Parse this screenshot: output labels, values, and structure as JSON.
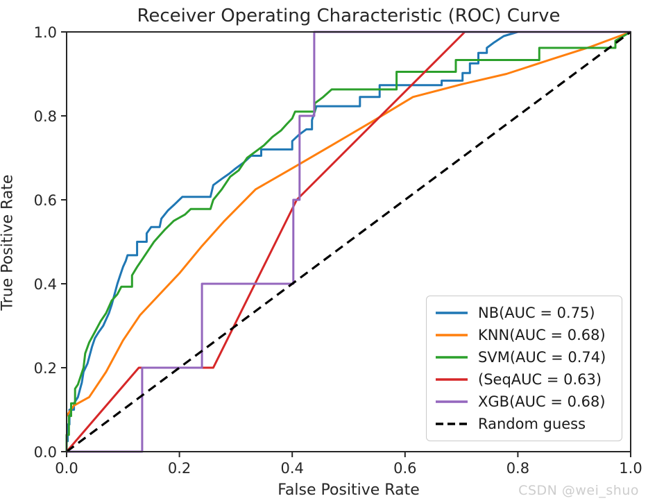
{
  "figure": {
    "title": "Receiver Operating Characteristic (ROC) Curve",
    "xlabel": "False Positive Rate",
    "ylabel": "True Positive Rate",
    "watermark": "CSDN @wei_shuo"
  },
  "chart_data": {
    "type": "line",
    "title": "Receiver Operating Characteristic (ROC) Curve",
    "xlabel": "False Positive Rate",
    "ylabel": "True Positive Rate",
    "xlim": [
      0.0,
      1.0
    ],
    "ylim": [
      0.0,
      1.0
    ],
    "xticks": [
      "0.0",
      "0.2",
      "0.4",
      "0.6",
      "0.8",
      "1.0"
    ],
    "xtick_values": [
      0.0,
      0.2,
      0.4,
      0.6,
      0.8,
      1.0
    ],
    "yticks": [
      "0.0",
      "0.2",
      "0.4",
      "0.6",
      "0.8",
      "1.0"
    ],
    "ytick_values": [
      0.0,
      0.2,
      0.4,
      0.6,
      0.8,
      1.0
    ],
    "grid": false,
    "legend_position": "lower right",
    "axis_color": "#262626",
    "series": [
      {
        "name": "NB(AUC = 0.75)",
        "auc": 0.75,
        "color": "#1f77b4",
        "style": "solid",
        "points": [
          [
            0,
            0
          ],
          [
            0,
            0.025
          ],
          [
            0.002,
            0.025
          ],
          [
            0.002,
            0.065
          ],
          [
            0.005,
            0.065
          ],
          [
            0.005,
            0.1
          ],
          [
            0.013,
            0.1
          ],
          [
            0.013,
            0.115
          ],
          [
            0.02,
            0.13
          ],
          [
            0.027,
            0.165
          ],
          [
            0.03,
            0.19
          ],
          [
            0.037,
            0.21
          ],
          [
            0.045,
            0.25
          ],
          [
            0.05,
            0.27
          ],
          [
            0.057,
            0.285
          ],
          [
            0.065,
            0.3
          ],
          [
            0.07,
            0.315
          ],
          [
            0.075,
            0.33
          ],
          [
            0.08,
            0.35
          ],
          [
            0.085,
            0.375
          ],
          [
            0.09,
            0.4
          ],
          [
            0.095,
            0.42
          ],
          [
            0.1,
            0.44
          ],
          [
            0.105,
            0.455
          ],
          [
            0.108,
            0.468
          ],
          [
            0.125,
            0.468
          ],
          [
            0.125,
            0.5
          ],
          [
            0.142,
            0.5
          ],
          [
            0.142,
            0.52
          ],
          [
            0.15,
            0.535
          ],
          [
            0.165,
            0.535
          ],
          [
            0.168,
            0.555
          ],
          [
            0.18,
            0.575
          ],
          [
            0.192,
            0.59
          ],
          [
            0.205,
            0.607
          ],
          [
            0.255,
            0.607
          ],
          [
            0.26,
            0.635
          ],
          [
            0.275,
            0.65
          ],
          [
            0.288,
            0.662
          ],
          [
            0.3,
            0.675
          ],
          [
            0.315,
            0.69
          ],
          [
            0.327,
            0.705
          ],
          [
            0.345,
            0.705
          ],
          [
            0.345,
            0.72
          ],
          [
            0.4,
            0.72
          ],
          [
            0.4,
            0.74
          ],
          [
            0.412,
            0.755
          ],
          [
            0.425,
            0.768
          ],
          [
            0.435,
            0.768
          ],
          [
            0.435,
            0.79
          ],
          [
            0.44,
            0.81
          ],
          [
            0.443,
            0.823
          ],
          [
            0.52,
            0.823
          ],
          [
            0.52,
            0.845
          ],
          [
            0.555,
            0.845
          ],
          [
            0.555,
            0.873
          ],
          [
            0.665,
            0.873
          ],
          [
            0.665,
            0.884
          ],
          [
            0.702,
            0.884
          ],
          [
            0.702,
            0.902
          ],
          [
            0.715,
            0.902
          ],
          [
            0.715,
            0.925
          ],
          [
            0.73,
            0.925
          ],
          [
            0.73,
            0.95
          ],
          [
            0.745,
            0.95
          ],
          [
            0.745,
            0.962
          ],
          [
            0.758,
            0.975
          ],
          [
            0.775,
            0.99
          ],
          [
            0.8,
            1.0
          ],
          [
            1,
            1
          ]
        ]
      },
      {
        "name": "KNN(AUC = 0.68)",
        "auc": 0.68,
        "color": "#ff7f0e",
        "style": "solid",
        "points": [
          [
            0,
            0.085
          ],
          [
            0.013,
            0.11
          ],
          [
            0.04,
            0.13
          ],
          [
            0.07,
            0.19
          ],
          [
            0.1,
            0.265
          ],
          [
            0.13,
            0.325
          ],
          [
            0.165,
            0.375
          ],
          [
            0.2,
            0.425
          ],
          [
            0.24,
            0.49
          ],
          [
            0.28,
            0.55
          ],
          [
            0.335,
            0.625
          ],
          [
            0.4,
            0.675
          ],
          [
            0.47,
            0.73
          ],
          [
            0.54,
            0.785
          ],
          [
            0.614,
            0.845
          ],
          [
            0.7,
            0.875
          ],
          [
            0.78,
            0.9
          ],
          [
            0.86,
            0.935
          ],
          [
            0.93,
            0.965
          ],
          [
            1,
            1
          ]
        ]
      },
      {
        "name": "SVM(AUC = 0.74)",
        "auc": 0.74,
        "color": "#2ca02c",
        "style": "solid",
        "points": [
          [
            0,
            0
          ],
          [
            0,
            0.04
          ],
          [
            0.004,
            0.04
          ],
          [
            0.004,
            0.085
          ],
          [
            0.008,
            0.085
          ],
          [
            0.008,
            0.115
          ],
          [
            0.015,
            0.115
          ],
          [
            0.015,
            0.15
          ],
          [
            0.02,
            0.16
          ],
          [
            0.03,
            0.2
          ],
          [
            0.033,
            0.234
          ],
          [
            0.04,
            0.26
          ],
          [
            0.05,
            0.285
          ],
          [
            0.06,
            0.31
          ],
          [
            0.07,
            0.33
          ],
          [
            0.08,
            0.36
          ],
          [
            0.09,
            0.375
          ],
          [
            0.097,
            0.393
          ],
          [
            0.116,
            0.393
          ],
          [
            0.116,
            0.42
          ],
          [
            0.125,
            0.44
          ],
          [
            0.135,
            0.46
          ],
          [
            0.145,
            0.48
          ],
          [
            0.155,
            0.5
          ],
          [
            0.165,
            0.515
          ],
          [
            0.175,
            0.53
          ],
          [
            0.19,
            0.55
          ],
          [
            0.21,
            0.565
          ],
          [
            0.22,
            0.578
          ],
          [
            0.255,
            0.578
          ],
          [
            0.26,
            0.6
          ],
          [
            0.275,
            0.625
          ],
          [
            0.29,
            0.655
          ],
          [
            0.305,
            0.67
          ],
          [
            0.32,
            0.7
          ],
          [
            0.335,
            0.715
          ],
          [
            0.35,
            0.73
          ],
          [
            0.365,
            0.75
          ],
          [
            0.38,
            0.765
          ],
          [
            0.39,
            0.78
          ],
          [
            0.4,
            0.794
          ],
          [
            0.405,
            0.81
          ],
          [
            0.44,
            0.81
          ],
          [
            0.44,
            0.83
          ],
          [
            0.455,
            0.845
          ],
          [
            0.47,
            0.863
          ],
          [
            0.585,
            0.863
          ],
          [
            0.585,
            0.905
          ],
          [
            0.69,
            0.905
          ],
          [
            0.69,
            0.933
          ],
          [
            0.838,
            0.933
          ],
          [
            0.838,
            0.962
          ],
          [
            0.973,
            0.962
          ],
          [
            0.973,
            0.979
          ],
          [
            1,
            1
          ]
        ]
      },
      {
        "name": "(SeqAUC = 0.63)",
        "auc": 0.63,
        "color": "#d62728",
        "style": "solid",
        "points": [
          [
            0,
            0
          ],
          [
            0.128,
            0.2
          ],
          [
            0.26,
            0.2
          ],
          [
            0.408,
            0.6
          ],
          [
            0.706,
            1.0
          ],
          [
            1,
            1
          ]
        ]
      },
      {
        "name": "XGB(AUC = 0.68)",
        "auc": 0.68,
        "color": "#9467bd",
        "style": "solid",
        "points": [
          [
            0,
            0
          ],
          [
            0.134,
            0
          ],
          [
            0.134,
            0.2
          ],
          [
            0.24,
            0.2
          ],
          [
            0.24,
            0.4
          ],
          [
            0.402,
            0.4
          ],
          [
            0.402,
            0.6
          ],
          [
            0.413,
            0.6
          ],
          [
            0.413,
            0.8
          ],
          [
            0.439,
            0.8
          ],
          [
            0.439,
            1.0
          ],
          [
            1,
            1
          ]
        ]
      },
      {
        "name": "Random guess",
        "color": "#000000",
        "style": "dashed",
        "points": [
          [
            0,
            0
          ],
          [
            1,
            1
          ]
        ]
      }
    ]
  }
}
